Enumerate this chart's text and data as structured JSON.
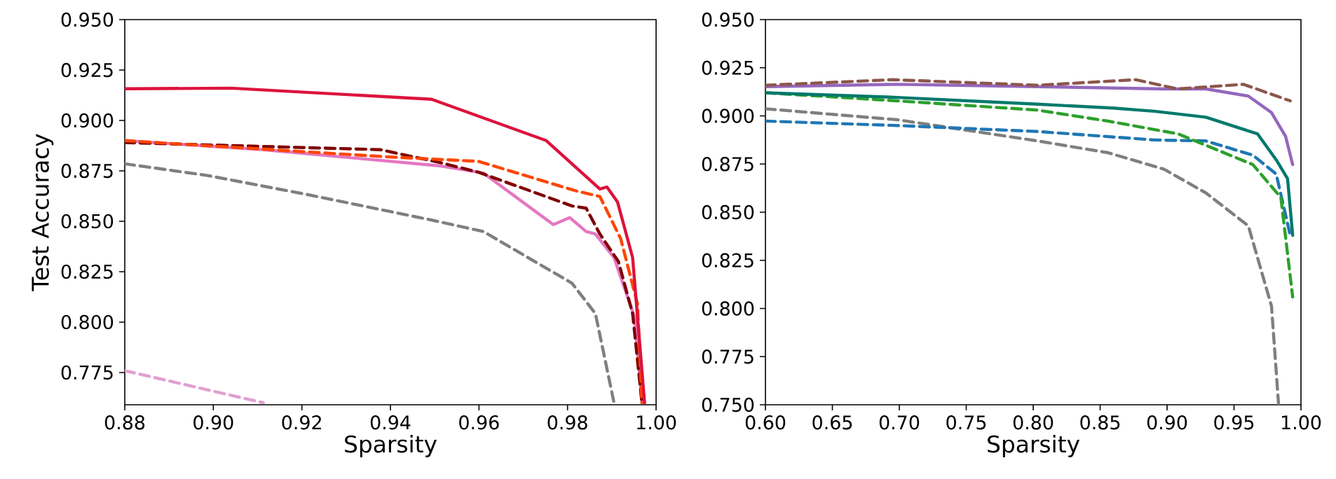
{
  "chart_data": [
    {
      "type": "line",
      "xlabel": "Sparsity",
      "ylabel": "Test Accuracy",
      "xlim": [
        0.88,
        1.0
      ],
      "ylim": [
        0.759,
        0.95
      ],
      "xticks": [
        {
          "value": 0.88,
          "label": "0.88"
        },
        {
          "value": 0.9,
          "label": "0.90"
        },
        {
          "value": 0.92,
          "label": "0.92"
        },
        {
          "value": 0.94,
          "label": "0.94"
        },
        {
          "value": 0.96,
          "label": "0.96"
        },
        {
          "value": 0.98,
          "label": "0.98"
        },
        {
          "value": 1.0,
          "label": "1.00"
        }
      ],
      "yticks": [
        {
          "value": 0.775,
          "label": "0.775"
        },
        {
          "value": 0.8,
          "label": "0.800"
        },
        {
          "value": 0.825,
          "label": "0.825"
        },
        {
          "value": 0.85,
          "label": "0.850"
        },
        {
          "value": 0.875,
          "label": "0.875"
        },
        {
          "value": 0.9,
          "label": "0.900"
        },
        {
          "value": 0.925,
          "label": "0.925"
        },
        {
          "value": 0.95,
          "label": "0.950"
        }
      ],
      "series": [
        {
          "color": "#7f7f7f",
          "line_style": "dashed",
          "x": [
            0.88,
            0.8987,
            0.9209,
            0.9493,
            0.961,
            0.981,
            0.9863,
            0.9905
          ],
          "values": [
            0.8785,
            0.8727,
            0.8634,
            0.8506,
            0.8449,
            0.8193,
            0.8042,
            0.76
          ]
        },
        {
          "color": "#e0a0d0",
          "line_style": "dashed",
          "x": [
            0.88,
            0.9113
          ],
          "values": [
            0.7759,
            0.76
          ]
        },
        {
          "color": "#e377c2",
          "line_style": "solid",
          "x": [
            0.88,
            0.9113,
            0.9514,
            0.961,
            0.9768,
            0.9805,
            0.9842,
            0.9863,
            0.9905,
            0.9952,
            0.9968
          ],
          "values": [
            0.89,
            0.8855,
            0.8774,
            0.8739,
            0.8483,
            0.8518,
            0.8449,
            0.8437,
            0.832,
            0.802,
            0.76
          ]
        },
        {
          "color": "#800000",
          "line_style": "dashed",
          "x": [
            0.88,
            0.9377,
            0.9514,
            0.9599,
            0.981,
            0.9842,
            0.9873,
            0.9915,
            0.9947,
            0.9968
          ],
          "values": [
            0.889,
            0.8855,
            0.879,
            0.8743,
            0.8576,
            0.8565,
            0.8437,
            0.83,
            0.8042,
            0.76
          ]
        },
        {
          "color": "#ff4500",
          "line_style": "dashed",
          "x": [
            0.88,
            0.9388,
            0.9599,
            0.982,
            0.9873,
            0.992,
            0.9958,
            0.9968
          ],
          "values": [
            0.89,
            0.882,
            0.8797,
            0.865,
            0.8623,
            0.8414,
            0.809,
            0.76
          ]
        },
        {
          "color": "#dc143c",
          "line_style": "solid",
          "x": [
            0.88,
            0.904,
            0.9493,
            0.9752,
            0.9873,
            0.9889,
            0.9913,
            0.9947,
            0.9974
          ],
          "values": [
            0.9157,
            0.916,
            0.9105,
            0.89,
            0.866,
            0.867,
            0.8595,
            0.832,
            0.76
          ]
        }
      ]
    },
    {
      "type": "line",
      "xlabel": "Sparsity",
      "xlim": [
        0.6,
        1.0
      ],
      "ylim": [
        0.75,
        0.95
      ],
      "xticks": [
        {
          "value": 0.6,
          "label": "0.60"
        },
        {
          "value": 0.65,
          "label": "0.65"
        },
        {
          "value": 0.7,
          "label": "0.70"
        },
        {
          "value": 0.75,
          "label": "0.75"
        },
        {
          "value": 0.8,
          "label": "0.80"
        },
        {
          "value": 0.85,
          "label": "0.85"
        },
        {
          "value": 0.9,
          "label": "0.90"
        },
        {
          "value": 0.95,
          "label": "0.95"
        },
        {
          "value": 1.0,
          "label": "1.00"
        }
      ],
      "yticks": [
        {
          "value": 0.75,
          "label": "0.750"
        },
        {
          "value": 0.775,
          "label": "0.775"
        },
        {
          "value": 0.8,
          "label": "0.800"
        },
        {
          "value": 0.825,
          "label": "0.825"
        },
        {
          "value": 0.85,
          "label": "0.850"
        },
        {
          "value": 0.875,
          "label": "0.875"
        },
        {
          "value": 0.9,
          "label": "0.900"
        },
        {
          "value": 0.925,
          "label": "0.925"
        },
        {
          "value": 0.95,
          "label": "0.950"
        }
      ],
      "series": [
        {
          "color": "#7f7f7f",
          "line_style": "dashed",
          "x": [
            0.6,
            0.6985,
            0.8033,
            0.8558,
            0.8977,
            0.929,
            0.9607,
            0.978,
            0.9833
          ],
          "values": [
            0.9037,
            0.898,
            0.887,
            0.8809,
            0.8723,
            0.86,
            0.8429,
            0.8012,
            0.75
          ]
        },
        {
          "color": "#1f77b4",
          "line_style": "dashed",
          "x": [
            0.6,
            0.6985,
            0.8033,
            0.8906,
            0.929,
            0.9641,
            0.9815,
            0.992
          ],
          "values": [
            0.8973,
            0.895,
            0.8919,
            0.8875,
            0.887,
            0.8796,
            0.8698,
            0.838
          ]
        },
        {
          "color": "#2ca02c",
          "line_style": "dashed",
          "x": [
            0.6,
            0.6985,
            0.8033,
            0.8558,
            0.9081,
            0.9641,
            0.985,
            0.9938
          ],
          "values": [
            0.912,
            0.9078,
            0.903,
            0.8973,
            0.8907,
            0.8747,
            0.8576,
            0.806
          ]
        },
        {
          "color": "#00796b",
          "line_style": "solid",
          "x": [
            0.6,
            0.6985,
            0.8033,
            0.8592,
            0.8906,
            0.929,
            0.9675,
            0.9815,
            0.99,
            0.9938
          ],
          "values": [
            0.912,
            0.9096,
            0.9061,
            0.9041,
            0.9024,
            0.8993,
            0.8907,
            0.8772,
            0.8674,
            0.838
          ]
        },
        {
          "color": "#9467bd",
          "line_style": "solid",
          "x": [
            0.6,
            0.6985,
            0.8033,
            0.8977,
            0.929,
            0.9607,
            0.978,
            0.9885,
            0.9938
          ],
          "values": [
            0.9152,
            0.9164,
            0.9152,
            0.914,
            0.914,
            0.9103,
            0.9017,
            0.8894,
            0.8747
          ]
        },
        {
          "color": "#8c564b",
          "line_style": "dashed",
          "x": [
            0.6,
            0.695,
            0.8033,
            0.8767,
            0.9081,
            0.957,
            0.992
          ],
          "values": [
            0.9159,
            0.9188,
            0.9159,
            0.9188,
            0.914,
            0.9164,
            0.9078
          ]
        }
      ]
    }
  ]
}
